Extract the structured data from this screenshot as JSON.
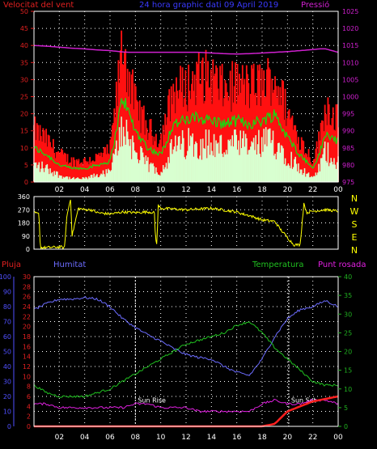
{
  "header": {
    "wind_speed_label": "Velocitat del vent",
    "title": "24 hora graphic dati   09 April 2019",
    "pressure_label": "Pressió"
  },
  "bottom_header": {
    "rain_label": "Pluja",
    "humidity_label": "Humitat",
    "temperature_label": "Temperatura",
    "dewpoint_label": "Punt rosada"
  },
  "colors": {
    "wind_gust": "#ff1010",
    "wind_avg": "#10e010",
    "wind_min": "#d8ffd0",
    "pressure": "#d020d0",
    "direction": "#ffff00",
    "rain": "#ff2020",
    "humidity": "#6c6cff",
    "temperature": "#20c020",
    "dewpoint": "#e020e0",
    "axis_red": "#e02020",
    "axis_blue": "#5050ff",
    "axis_green": "#20b020",
    "grid": "#ffffff"
  },
  "annotations": {
    "sun_rise": "Sun Rise",
    "sun_set": "Sun Set",
    "sun_rise_hour": 8.0,
    "sun_set_hour": 20.1
  },
  "chart_data": [
    {
      "type": "line",
      "name": "wind",
      "x_ticks": [
        "02",
        "04",
        "06",
        "08",
        "10",
        "12",
        "14",
        "16",
        "18",
        "20",
        "22",
        "00"
      ],
      "ylim_left": [
        0,
        50
      ],
      "yticks_left": [
        0,
        5,
        10,
        15,
        20,
        25,
        30,
        35,
        40,
        45,
        50
      ],
      "ylim_right": [
        975,
        1025
      ],
      "yticks_right": [
        975,
        980,
        985,
        990,
        995,
        1000,
        1005,
        1010,
        1015,
        1020,
        1025
      ],
      "grid": true,
      "keyframes_hour": [
        0,
        1,
        2,
        3,
        4,
        5,
        6,
        6.5,
        7,
        7.5,
        8,
        9,
        10,
        11,
        12,
        13,
        14,
        15,
        16,
        17,
        18,
        19,
        20,
        21,
        22,
        22.5,
        23,
        24
      ],
      "gust": [
        15,
        12,
        8,
        6,
        6,
        7,
        9,
        23,
        40,
        30,
        22,
        15,
        12,
        26,
        27,
        30,
        30,
        26,
        28,
        27,
        28,
        30,
        20,
        12,
        6,
        12,
        22,
        18
      ],
      "average": [
        10,
        8,
        5,
        4,
        4,
        5,
        6,
        15,
        25,
        20,
        15,
        10,
        8,
        17,
        18,
        19,
        18,
        17,
        18,
        17,
        18,
        20,
        13,
        8,
        4,
        8,
        14,
        12
      ],
      "minimum": [
        5,
        4,
        2,
        1,
        1,
        2,
        3,
        9,
        17,
        13,
        9,
        5,
        3,
        10,
        11,
        12,
        11,
        10,
        11,
        10,
        11,
        12,
        8,
        4,
        1,
        4,
        9,
        6
      ],
      "pressure": [
        1015,
        1014.8,
        1014.5,
        1014.2,
        1014,
        1013.7,
        1013.5,
        1013.3,
        1013.1,
        1013,
        1013,
        1013,
        1013,
        1013,
        1013,
        1013,
        1012.8,
        1012.6,
        1012.5,
        1012.6,
        1012.8,
        1013,
        1013.2,
        1013.5,
        1013.8,
        1014,
        1014,
        1013
      ]
    },
    {
      "type": "line",
      "name": "wind_direction",
      "ylim": [
        0,
        360
      ],
      "yticks": [
        0,
        90,
        180,
        270,
        360
      ],
      "compass": [
        "N",
        "W",
        "S",
        "E",
        "N"
      ],
      "x_ticks": [
        "02",
        "04",
        "06",
        "08",
        "10",
        "12",
        "14",
        "16",
        "18",
        "20",
        "22",
        "00"
      ],
      "keyframes_hour": [
        0,
        0.4,
        0.5,
        2.2,
        2.4,
        2.6,
        2.9,
        3.0,
        3.5,
        4,
        4.5,
        5,
        6,
        7,
        8,
        9,
        9.5,
        9.6,
        9.7,
        9.8,
        10,
        12,
        14,
        16,
        16.5,
        17,
        18,
        19,
        19.5,
        20,
        20.5,
        21,
        21.3,
        21.5,
        22,
        23,
        24
      ],
      "degrees": [
        250,
        240,
        10,
        15,
        5,
        230,
        350,
        90,
        280,
        270,
        270,
        250,
        240,
        255,
        250,
        255,
        250,
        60,
        40,
        300,
        280,
        270,
        280,
        255,
        240,
        230,
        200,
        190,
        130,
        80,
        30,
        30,
        320,
        250,
        260,
        270,
        260
      ]
    },
    {
      "type": "line",
      "name": "rain_humidity_temperature",
      "x_ticks": [
        "02",
        "04",
        "06",
        "08",
        "10",
        "12",
        "14",
        "16",
        "18",
        "20",
        "22",
        "00"
      ],
      "ylim_humidity": [
        0,
        100
      ],
      "yticks_humidity": [
        0,
        10,
        20,
        30,
        40,
        50,
        60,
        70,
        80,
        90,
        100
      ],
      "ylim_rain": [
        0,
        30
      ],
      "yticks_rain": [
        0,
        2,
        4,
        6,
        8,
        10,
        12,
        14,
        16,
        18,
        20,
        22,
        24,
        26,
        28,
        30
      ],
      "ylim_temperature": [
        0,
        40
      ],
      "yticks_temperature": [
        0,
        5,
        10,
        15,
        20,
        25,
        30,
        35,
        40
      ],
      "grid": true,
      "keyframes_hour": [
        0,
        1,
        2,
        3,
        4,
        5,
        6,
        7,
        8,
        9,
        10,
        11,
        12,
        13,
        14,
        15,
        16,
        17,
        18,
        19,
        20,
        21,
        22,
        23,
        24
      ],
      "humidity": [
        78,
        82,
        85,
        85,
        86,
        85,
        80,
        72,
        66,
        61,
        57,
        52,
        48,
        46,
        45,
        40,
        36,
        34,
        45,
        60,
        72,
        78,
        80,
        84,
        80
      ],
      "temperature": [
        11,
        9,
        8,
        8,
        8,
        9,
        10,
        12,
        14,
        16,
        18,
        20,
        22,
        23,
        24,
        25,
        27,
        28,
        25,
        21,
        18,
        15,
        12,
        11,
        11
      ],
      "dewpoint": [
        6,
        6,
        5,
        5,
        5,
        5,
        5,
        5,
        6,
        6,
        5,
        5,
        5,
        4,
        4,
        4,
        4,
        4,
        6,
        7,
        6,
        6,
        7,
        7,
        6
      ],
      "rain": [
        0,
        0,
        0,
        0,
        0,
        0,
        0,
        0,
        0,
        0,
        0,
        0,
        0,
        0,
        0,
        0,
        0,
        0,
        0,
        0.5,
        3,
        4,
        5,
        5.5,
        6
      ]
    }
  ]
}
